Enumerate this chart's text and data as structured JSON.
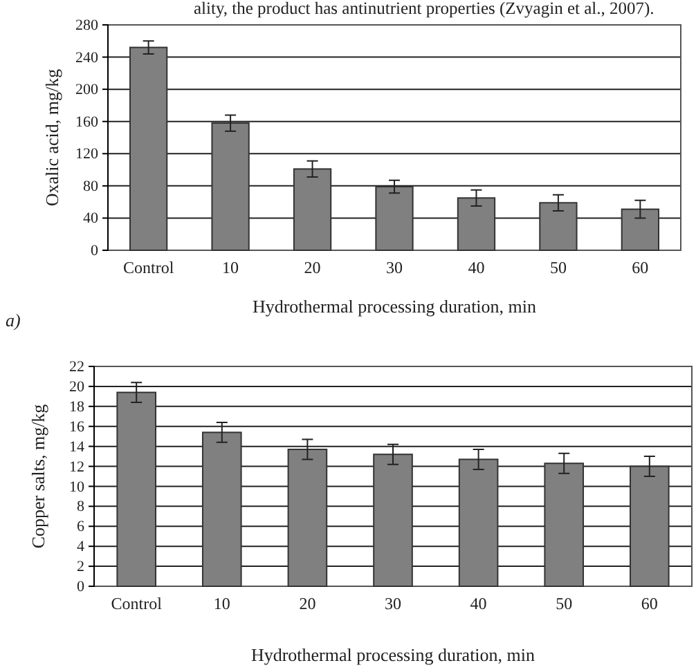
{
  "chart_data": [
    {
      "type": "bar",
      "xlabel": "Hydrothermal processing duration, min",
      "ylabel": "Oxalic acid, mg/kg",
      "categories": [
        "Control",
        "10",
        "20",
        "30",
        "40",
        "50",
        "60"
      ],
      "values": [
        252,
        158,
        101,
        79,
        65,
        59,
        51
      ],
      "errors": [
        8,
        10,
        10,
        8,
        10,
        10,
        11
      ],
      "color": "#808080",
      "ylim": [
        0,
        280
      ],
      "yticks": [
        0,
        40,
        80,
        120,
        160,
        200,
        240,
        280
      ],
      "grid": "y",
      "annotations": [
        "ality, the product has antinutrient properties (Zvyagin et al., 2007).",
        "a)"
      ]
    },
    {
      "type": "bar",
      "xlabel": "Hydrothermal processing duration, min",
      "ylabel": "Copper salts, mg/kg",
      "categories": [
        "Control",
        "10",
        "20",
        "30",
        "40",
        "50",
        "60"
      ],
      "values": [
        19.4,
        15.4,
        13.7,
        13.2,
        12.7,
        12.3,
        12.0
      ],
      "errors": [
        1,
        1,
        1,
        1,
        1,
        1,
        1
      ],
      "color": "#808080",
      "ylim": [
        0,
        22
      ],
      "yticks": [
        0,
        2,
        4,
        6,
        8,
        10,
        12,
        14,
        16,
        18,
        20,
        22
      ],
      "grid": "y"
    }
  ]
}
